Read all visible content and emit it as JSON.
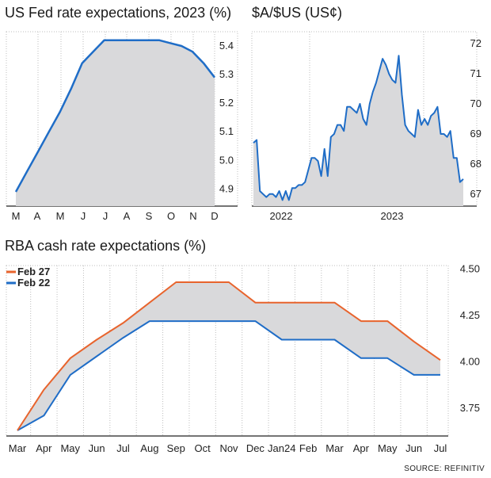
{
  "colors": {
    "blue": "#1f6dc7",
    "orange": "#e8642d",
    "fill": "#d9d9db",
    "grid": "#bdbdbd",
    "axis": "#222222"
  },
  "source": "SOURCE: REFINITIV",
  "chart_data": [
    {
      "type": "area",
      "title": "US Fed rate expectations, 2023 (%)",
      "categories": [
        "M",
        "A",
        "M",
        "J",
        "J",
        "A",
        "S",
        "O",
        "N",
        "D"
      ],
      "x": [
        0,
        0.5,
        1,
        1.5,
        2,
        2.5,
        3,
        3.5,
        4,
        4.5,
        5,
        5.5,
        6,
        6.5,
        7,
        7.5,
        8,
        8.5,
        9
      ],
      "series": [
        {
          "values": [
            4.89,
            4.96,
            5.03,
            5.1,
            5.17,
            5.25,
            5.34,
            5.38,
            5.42,
            5.42,
            5.42,
            5.42,
            5.42,
            5.42,
            5.41,
            5.4,
            5.38,
            5.34,
            5.29
          ],
          "color": "#1f6dc7"
        }
      ],
      "ylim": [
        4.84,
        5.45
      ],
      "yticks": [
        "5.4",
        "5.3",
        "5.2",
        "5.1",
        "5.0",
        "4.9"
      ],
      "ytick_values": [
        5.4,
        5.3,
        5.2,
        5.1,
        5.0,
        4.9
      ],
      "grid": "vertical dotted",
      "y_axis_side": "right"
    },
    {
      "type": "area",
      "title": "$A/$US (US¢)",
      "xlabels": [
        "2022",
        "2023"
      ],
      "ylim": [
        66.6,
        72.4
      ],
      "yticks": [
        "72",
        "71",
        "70",
        "69",
        "68",
        "67"
      ],
      "ytick_values": [
        72,
        71,
        70,
        69,
        68,
        67
      ],
      "grid": "vertical dotted",
      "y_axis_side": "right",
      "series": [
        {
          "values": [
            68.7,
            68.8,
            67.1,
            67.0,
            66.9,
            67.0,
            67.0,
            66.9,
            67.1,
            66.8,
            67.1,
            66.8,
            67.2,
            67.2,
            67.3,
            67.3,
            67.4,
            67.8,
            68.2,
            68.2,
            68.1,
            67.6,
            68.5,
            67.6,
            68.9,
            69.0,
            69.3,
            69.3,
            69.1,
            69.9,
            69.9,
            69.8,
            69.7,
            70.0,
            69.5,
            69.3,
            70.0,
            70.4,
            70.7,
            71.1,
            71.5,
            71.3,
            71.0,
            70.8,
            70.7,
            71.6,
            70.3,
            69.3,
            69.1,
            69.0,
            68.9,
            69.8,
            69.3,
            69.5,
            69.3,
            69.6,
            69.7,
            69.9,
            69.0,
            69.0,
            68.9,
            69.1,
            68.2,
            68.2,
            67.4,
            67.5
          ],
          "color": "#1f6dc7"
        }
      ]
    },
    {
      "type": "line",
      "title": "RBA cash rate expectations (%)",
      "categories": [
        "Mar",
        "Apr",
        "May",
        "Jun",
        "Jul",
        "Aug",
        "Sep",
        "Oct",
        "Nov",
        "Dec",
        "Jan24",
        "Feb",
        "Mar",
        "Apr",
        "May",
        "Jun",
        "Jul"
      ],
      "x": [
        0,
        1,
        2,
        3,
        4,
        5,
        6,
        7,
        8,
        9,
        10,
        11,
        12,
        13,
        14,
        15,
        16
      ],
      "series": [
        {
          "name": "Feb 27",
          "color": "#e8642d",
          "values": [
            3.63,
            3.85,
            4.02,
            4.12,
            4.21,
            4.32,
            4.43,
            4.43,
            4.43,
            4.32,
            4.32,
            4.32,
            4.32,
            4.22,
            4.22,
            4.11,
            4.01
          ]
        },
        {
          "name": "Feb 22",
          "color": "#1f6dc7",
          "values": [
            3.63,
            3.71,
            3.93,
            4.03,
            4.13,
            4.22,
            4.22,
            4.22,
            4.22,
            4.22,
            4.12,
            4.12,
            4.12,
            4.02,
            4.02,
            3.93,
            3.93
          ]
        }
      ],
      "ylim": [
        3.6,
        4.52
      ],
      "yticks": [
        "4.50",
        "4.25",
        "4.00",
        "3.75"
      ],
      "ytick_values": [
        4.5,
        4.25,
        4.0,
        3.75
      ],
      "grid": "vertical dotted",
      "legend": "top-left",
      "y_axis_side": "right"
    }
  ]
}
